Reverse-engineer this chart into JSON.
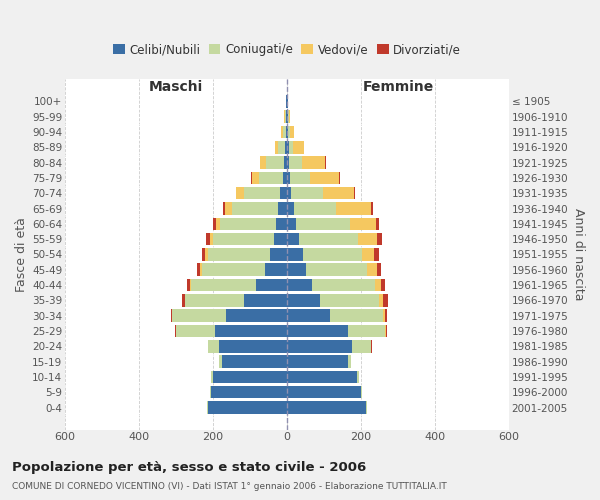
{
  "age_groups": [
    "0-4",
    "5-9",
    "10-14",
    "15-19",
    "20-24",
    "25-29",
    "30-34",
    "35-39",
    "40-44",
    "45-49",
    "50-54",
    "55-59",
    "60-64",
    "65-69",
    "70-74",
    "75-79",
    "80-84",
    "85-89",
    "90-94",
    "95-99",
    "100+"
  ],
  "birth_years": [
    "2001-2005",
    "1996-2000",
    "1991-1995",
    "1986-1990",
    "1981-1985",
    "1976-1980",
    "1971-1975",
    "1966-1970",
    "1961-1965",
    "1956-1960",
    "1951-1955",
    "1946-1950",
    "1941-1945",
    "1936-1940",
    "1931-1935",
    "1926-1930",
    "1921-1925",
    "1916-1920",
    "1911-1915",
    "1906-1910",
    "≤ 1905"
  ],
  "males_celibe": [
    215,
    205,
    200,
    175,
    185,
    195,
    165,
    115,
    85,
    60,
    45,
    35,
    30,
    25,
    20,
    12,
    8,
    5,
    3,
    3,
    2
  ],
  "males_coniugato": [
    2,
    4,
    5,
    8,
    28,
    105,
    145,
    160,
    175,
    170,
    170,
    165,
    150,
    125,
    95,
    65,
    48,
    18,
    8,
    3,
    1
  ],
  "males_vedovo": [
    0,
    0,
    0,
    0,
    0,
    1,
    1,
    2,
    2,
    4,
    6,
    8,
    12,
    18,
    22,
    18,
    16,
    10,
    4,
    1,
    0
  ],
  "males_divorziato": [
    0,
    0,
    0,
    0,
    0,
    2,
    4,
    8,
    8,
    10,
    10,
    10,
    8,
    5,
    2,
    2,
    1,
    0,
    0,
    0,
    0
  ],
  "females_nubile": [
    215,
    200,
    190,
    165,
    175,
    165,
    115,
    90,
    68,
    52,
    42,
    32,
    25,
    18,
    12,
    8,
    6,
    5,
    3,
    3,
    2
  ],
  "females_coniugata": [
    2,
    4,
    5,
    8,
    52,
    100,
    145,
    160,
    170,
    165,
    160,
    160,
    145,
    115,
    85,
    55,
    35,
    12,
    5,
    2,
    1
  ],
  "females_vedova": [
    0,
    0,
    0,
    0,
    1,
    2,
    4,
    10,
    15,
    26,
    32,
    52,
    70,
    95,
    85,
    78,
    62,
    28,
    10,
    4,
    1
  ],
  "females_divorziata": [
    0,
    0,
    0,
    0,
    2,
    4,
    7,
    14,
    12,
    12,
    14,
    14,
    8,
    5,
    3,
    2,
    2,
    1,
    0,
    0,
    0
  ],
  "colors": {
    "celibe": "#3a6ea5",
    "coniugato": "#c5d9a0",
    "vedovo": "#f5c860",
    "divorziato": "#c0392b"
  },
  "title": "Popolazione per età, sesso e stato civile - 2006",
  "subtitle": "COMUNE DI CORNEDO VICENTINO (VI) - Dati ISTAT 1° gennaio 2006 - Elaborazione TUTTITALIA.IT",
  "label_maschi": "Maschi",
  "label_femmine": "Femmine",
  "ylabel_left": "Fasce di età",
  "ylabel_right": "Anni di nascita",
  "xlim": 600,
  "legend_labels": [
    "Celibi/Nubili",
    "Coniugati/e",
    "Vedovi/e",
    "Divorziati/e"
  ],
  "bg_color": "#f0f0f0",
  "plot_bg_color": "#ffffff"
}
